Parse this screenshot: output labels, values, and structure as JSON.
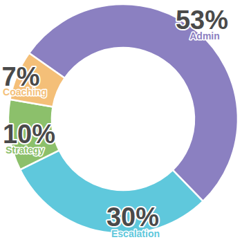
{
  "chart_data": {
    "type": "donut",
    "categories": [
      "Admin",
      "Escalation",
      "Strategy",
      "Coaching"
    ],
    "values": [
      53,
      30,
      10,
      7
    ],
    "value_labels": [
      "53%",
      "30%",
      "10%",
      "7%"
    ],
    "colors": [
      "#8b80c1",
      "#5fc8dc",
      "#8cc06b",
      "#f4bf78"
    ],
    "data_labels": true
  }
}
